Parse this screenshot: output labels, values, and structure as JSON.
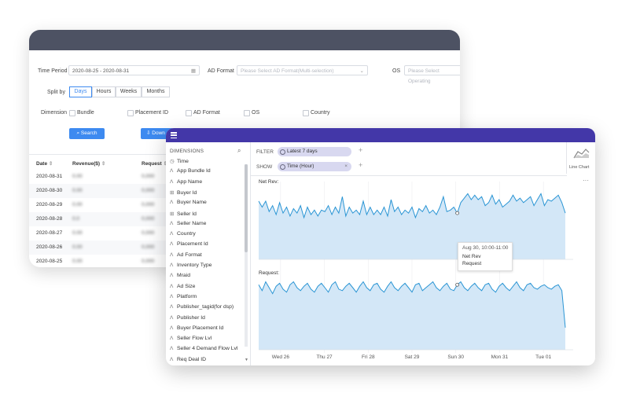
{
  "filters": {
    "time_period_label": "Time Period",
    "time_period_value": "2020-08-25 - 2020-08-31",
    "ad_format_label": "AD Format",
    "ad_format_placeholder": "Please Select AD Format(Multi-selection)",
    "os_label": "OS",
    "os_placeholder": "Please Select Operating",
    "split_by_label": "Split by",
    "split_options": [
      "Days",
      "Hours",
      "Weeks",
      "Months"
    ],
    "split_selected": "Days",
    "dimension_label": "Dimension",
    "dimension_options": [
      "Bundle",
      "Placement ID",
      "AD Format",
      "OS",
      "Country"
    ],
    "search_button": "Search",
    "download_button": "Down"
  },
  "table": {
    "headers": [
      "Date",
      "Revenue($)",
      "Request"
    ],
    "rows": [
      {
        "date": "2020-08-31",
        "revenue": "0.00",
        "request": "0,000"
      },
      {
        "date": "2020-08-30",
        "revenue": "0.00",
        "request": "0,000"
      },
      {
        "date": "2020-08-29",
        "revenue": "0.00",
        "request": "0,000"
      },
      {
        "date": "2020-08-28",
        "revenue": "0.0",
        "request": "0,000"
      },
      {
        "date": "2020-08-27",
        "revenue": "0.00",
        "request": "0,000"
      },
      {
        "date": "2020-08-26",
        "revenue": "0.00",
        "request": "0,000"
      },
      {
        "date": "2020-08-25",
        "revenue": "0.00",
        "request": "0,000"
      }
    ]
  },
  "dimensions": {
    "header": "DIMENSIONS",
    "items": [
      {
        "label": "Time",
        "icon": "clock-icon"
      },
      {
        "label": "App Bundle Id",
        "icon": "text-icon"
      },
      {
        "label": "App Name",
        "icon": "text-icon"
      },
      {
        "label": "Buyer Id",
        "icon": "hash-icon"
      },
      {
        "label": "Buyer Name",
        "icon": "text-icon"
      },
      {
        "label": "Seller Id",
        "icon": "hash-icon"
      },
      {
        "label": "Seller Name",
        "icon": "text-icon"
      },
      {
        "label": "Country",
        "icon": "text-icon"
      },
      {
        "label": "Placement Id",
        "icon": "text-icon"
      },
      {
        "label": "Ad Format",
        "icon": "text-icon"
      },
      {
        "label": "Inventory Type",
        "icon": "text-icon"
      },
      {
        "label": "Mraid",
        "icon": "text-icon"
      },
      {
        "label": "Ad Size",
        "icon": "text-icon"
      },
      {
        "label": "Platform",
        "icon": "text-icon"
      },
      {
        "label": "Publisher_tagid(for dsp)",
        "icon": "text-icon"
      },
      {
        "label": "Publisher Id",
        "icon": "text-icon"
      },
      {
        "label": "Buyer Placement Id",
        "icon": "text-icon"
      },
      {
        "label": "Seller Flow Lvl",
        "icon": "text-icon"
      },
      {
        "label": "Seller 4 Demand Flow Lvl",
        "icon": "text-icon"
      },
      {
        "label": "Req Deal ID",
        "icon": "text-icon"
      }
    ]
  },
  "explorer": {
    "filter_label": "FILTER",
    "filter_value": "Latest 7 days",
    "show_label": "SHOW",
    "show_value": "Time (Hour)",
    "chart_type_label": "Line Chart",
    "more_label": "···"
  },
  "chart_data": [
    {
      "type": "area",
      "title": "Net Rev:",
      "x_ticks": [
        "Wed 26",
        "Thu 27",
        "Fri 28",
        "Sat 29",
        "Sun 30",
        "Mon 31",
        "Tue 01"
      ],
      "y_level": [
        0.78,
        0.7,
        0.78,
        0.64,
        0.72,
        0.6,
        0.76,
        0.62,
        0.7,
        0.58,
        0.68,
        0.62,
        0.72,
        0.56,
        0.7,
        0.6,
        0.66,
        0.58,
        0.66,
        0.64,
        0.72,
        0.6,
        0.7,
        0.62,
        0.84,
        0.58,
        0.7,
        0.62,
        0.66,
        0.6,
        0.78,
        0.6,
        0.7,
        0.6,
        0.66,
        0.6,
        0.7,
        0.58,
        0.8,
        0.64,
        0.7,
        0.6,
        0.66,
        0.62,
        0.7,
        0.56,
        0.68,
        0.64,
        0.72,
        0.62,
        0.66,
        0.6,
        0.7,
        0.84,
        0.64,
        0.66,
        0.7,
        0.62,
        0.76,
        0.82,
        0.88,
        0.8,
        0.86,
        0.8,
        0.84,
        0.72,
        0.76,
        0.86,
        0.74,
        0.8,
        0.7,
        0.74,
        0.78,
        0.86,
        0.78,
        0.82,
        0.76,
        0.8,
        0.84,
        0.72,
        0.8,
        0.88,
        0.72,
        0.8,
        0.78,
        0.82,
        0.86,
        0.76,
        0.62
      ]
    },
    {
      "type": "area",
      "title": "Request:",
      "x_ticks": [
        "Wed 26",
        "Thu 27",
        "Fri 28",
        "Sat 29",
        "Sun 30",
        "Mon 31",
        "Tue 01"
      ],
      "y_level": [
        0.88,
        0.8,
        0.92,
        0.84,
        0.76,
        0.86,
        0.9,
        0.82,
        0.78,
        0.88,
        0.92,
        0.84,
        0.8,
        0.86,
        0.9,
        0.82,
        0.78,
        0.86,
        0.9,
        0.84,
        0.78,
        0.88,
        0.92,
        0.82,
        0.8,
        0.86,
        0.9,
        0.84,
        0.78,
        0.86,
        0.92,
        0.84,
        0.8,
        0.88,
        0.9,
        0.82,
        0.78,
        0.86,
        0.92,
        0.84,
        0.8,
        0.86,
        0.9,
        0.84,
        0.78,
        0.88,
        0.9,
        0.8,
        0.84,
        0.88,
        0.92,
        0.84,
        0.8,
        0.86,
        0.9,
        0.82,
        0.8,
        0.88,
        0.92,
        0.84,
        0.8,
        0.86,
        0.9,
        0.84,
        0.8,
        0.88,
        0.9,
        0.82,
        0.78,
        0.86,
        0.9,
        0.84,
        0.8,
        0.86,
        0.92,
        0.84,
        0.8,
        0.88,
        0.9,
        0.84,
        0.82,
        0.86,
        0.88,
        0.84,
        0.82,
        0.86,
        0.88,
        0.8,
        0.3
      ]
    }
  ],
  "tooltip": {
    "title": "Aug 30, 10:00-11:00",
    "lines": [
      "Net Rev",
      "Request"
    ]
  },
  "colors": {
    "header_dark": "#4d5263",
    "header_purple": "#4337a8",
    "accent_blue": "#3d8af0",
    "line": "#2a95d4",
    "area_fill": "#d3e7f7"
  }
}
